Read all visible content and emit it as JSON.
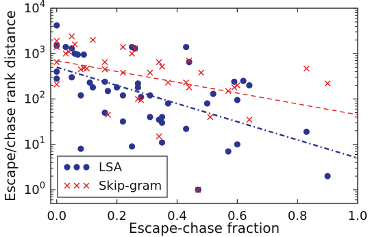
{
  "chart_data": {
    "type": "scatter",
    "xlabel": "Escape-chase fraction",
    "ylabel": "Escape/chase rank distance",
    "xlim": [
      -0.02,
      1.0
    ],
    "ylim": [
      0.5,
      10000
    ],
    "yscale": "log",
    "xticks": [
      {
        "v": 0.0,
        "label": "0.0"
      },
      {
        "v": 0.2,
        "label": "0.2"
      },
      {
        "v": 0.4,
        "label": "0.4"
      },
      {
        "v": 0.6,
        "label": "0.6"
      },
      {
        "v": 0.8,
        "label": "0.8"
      },
      {
        "v": 1.0,
        "label": "1.0"
      }
    ],
    "yticks": [
      {
        "v": 1,
        "base": "10",
        "exp": "0"
      },
      {
        "v": 10,
        "base": "10",
        "exp": "1"
      },
      {
        "v": 100,
        "base": "10",
        "exp": "2"
      },
      {
        "v": 1000,
        "base": "10",
        "exp": "3"
      },
      {
        "v": 10000,
        "base": "10",
        "exp": "4"
      }
    ],
    "legend_position": "lower-left",
    "series": [
      {
        "name": "LSA",
        "marker": "circle",
        "color": "#2b3591",
        "points": [
          [
            0.0,
            4200
          ],
          [
            0.0,
            1500
          ],
          [
            0.0,
            400
          ],
          [
            0.0,
            280
          ],
          [
            0.03,
            1400
          ],
          [
            0.05,
            1300
          ],
          [
            0.07,
            950
          ],
          [
            0.06,
            1000
          ],
          [
            0.05,
            300
          ],
          [
            0.08,
            120
          ],
          [
            0.11,
            230
          ],
          [
            0.12,
            180
          ],
          [
            0.16,
            240
          ],
          [
            0.17,
            150
          ],
          [
            0.2,
            180
          ],
          [
            0.09,
            950
          ],
          [
            0.25,
            1400
          ],
          [
            0.26,
            1300
          ],
          [
            0.27,
            220
          ],
          [
            0.27,
            180
          ],
          [
            0.22,
            120
          ],
          [
            0.28,
            110
          ],
          [
            0.16,
            50
          ],
          [
            0.22,
            32
          ],
          [
            0.31,
            120
          ],
          [
            0.31,
            40
          ],
          [
            0.34,
            35
          ],
          [
            0.35,
            30
          ],
          [
            0.35,
            40
          ],
          [
            0.35,
            11
          ],
          [
            0.37,
            80
          ],
          [
            0.43,
            1400
          ],
          [
            0.44,
            650
          ],
          [
            0.43,
            22
          ],
          [
            0.47,
            1.0
          ],
          [
            0.52,
            130
          ],
          [
            0.5,
            80
          ],
          [
            0.59,
            240
          ],
          [
            0.6,
            95
          ],
          [
            0.62,
            250
          ],
          [
            0.64,
            200
          ],
          [
            0.57,
            7
          ],
          [
            0.6,
            10
          ],
          [
            0.25,
            9
          ],
          [
            0.08,
            8
          ],
          [
            0.83,
            19
          ],
          [
            0.9,
            2
          ]
        ],
        "trend": {
          "style": "dash-dot",
          "points": [
            [
              0.0,
              500
            ],
            [
              1.0,
              5
            ]
          ]
        }
      },
      {
        "name": "Skip-gram",
        "marker": "x",
        "color": "#e02020",
        "points": [
          [
            0.0,
            1900
          ],
          [
            0.0,
            1400
          ],
          [
            0.0,
            650
          ],
          [
            0.0,
            210
          ],
          [
            0.03,
            1000
          ],
          [
            0.04,
            1100
          ],
          [
            0.05,
            2400
          ],
          [
            0.06,
            1600
          ],
          [
            0.08,
            450
          ],
          [
            0.09,
            480
          ],
          [
            0.1,
            470
          ],
          [
            0.12,
            2000
          ],
          [
            0.16,
            650
          ],
          [
            0.16,
            450
          ],
          [
            0.17,
            45
          ],
          [
            0.22,
            380
          ],
          [
            0.22,
            1400
          ],
          [
            0.25,
            1000
          ],
          [
            0.26,
            1300
          ],
          [
            0.27,
            100
          ],
          [
            0.28,
            95
          ],
          [
            0.31,
            380
          ],
          [
            0.34,
            650
          ],
          [
            0.35,
            520
          ],
          [
            0.34,
            15
          ],
          [
            0.37,
            230
          ],
          [
            0.43,
            230
          ],
          [
            0.44,
            700
          ],
          [
            0.44,
            180
          ],
          [
            0.47,
            1.0
          ],
          [
            0.48,
            380
          ],
          [
            0.51,
            40
          ],
          [
            0.57,
            150
          ],
          [
            0.59,
            180
          ],
          [
            0.6,
            200
          ],
          [
            0.64,
            35
          ],
          [
            0.83,
            470
          ],
          [
            0.9,
            220
          ]
        ],
        "trend": {
          "style": "dashed",
          "points": [
            [
              0.0,
              700
            ],
            [
              1.0,
              45
            ]
          ]
        }
      }
    ]
  }
}
